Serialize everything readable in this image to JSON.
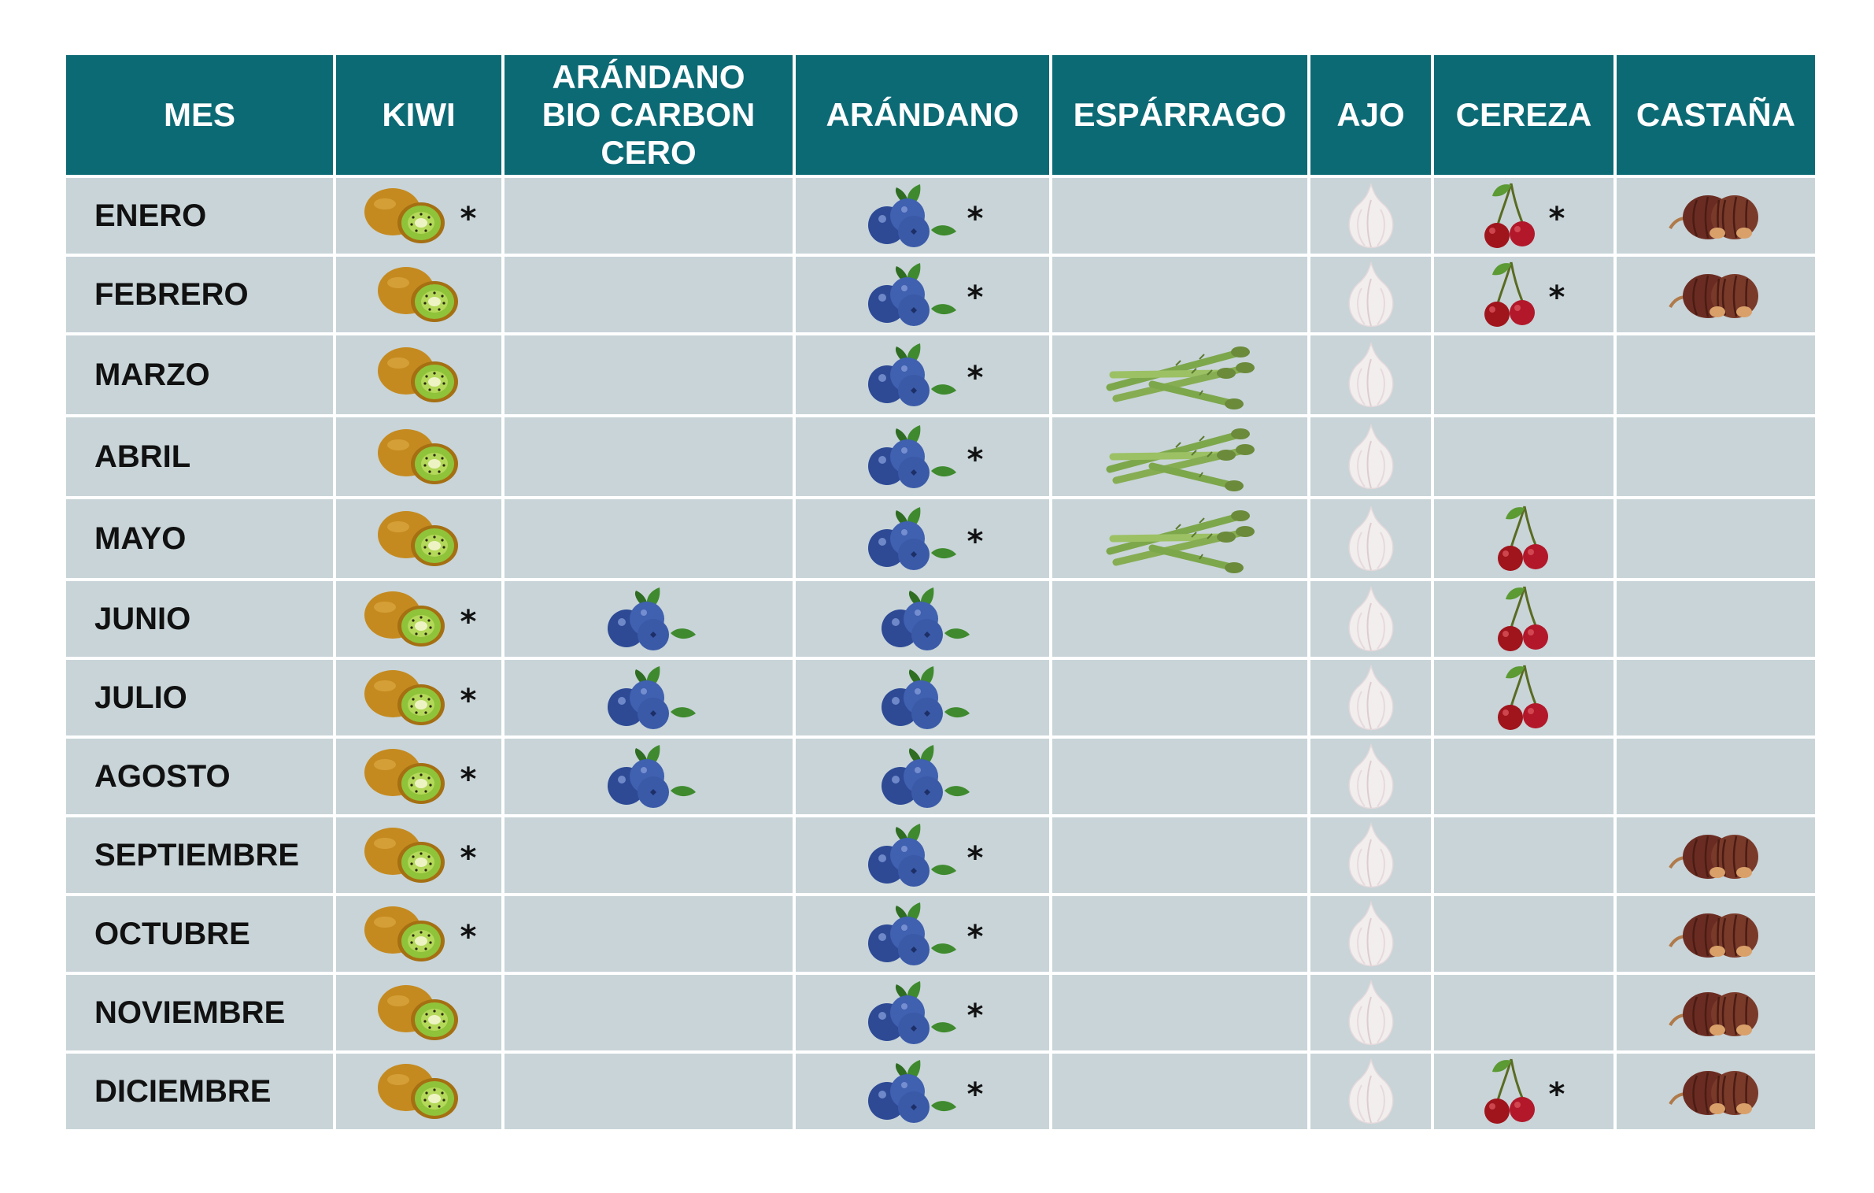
{
  "headers": [
    "MES",
    "KIWI",
    "ARÁNDANO BIO CARBON CERO",
    "ARÁNDANO",
    "ESPÁRRAGO",
    "AJO",
    "CEREZA",
    "CASTAÑA"
  ],
  "products": [
    "kiwi",
    "blueberry",
    "blueberry",
    "asparagus",
    "garlic",
    "cherry",
    "chestnut"
  ],
  "asterisk": "*",
  "rows": [
    {
      "month": "ENERO",
      "cells": [
        "Y*",
        "",
        "Y*",
        "",
        "Y",
        "Y*",
        "Y"
      ]
    },
    {
      "month": "FEBRERO",
      "cells": [
        "Y",
        "",
        "Y*",
        "",
        "Y",
        "Y*",
        "Y"
      ]
    },
    {
      "month": "MARZO",
      "cells": [
        "Y",
        "",
        "Y*",
        "Y",
        "Y",
        "",
        ""
      ]
    },
    {
      "month": "ABRIL",
      "cells": [
        "Y",
        "",
        "Y*",
        "Y",
        "Y",
        "",
        ""
      ]
    },
    {
      "month": "MAYO",
      "cells": [
        "Y",
        "",
        "Y*",
        "Y",
        "Y",
        "Y",
        ""
      ]
    },
    {
      "month": "JUNIO",
      "cells": [
        "Y*",
        "Y",
        "Y",
        "",
        "Y",
        "Y",
        ""
      ]
    },
    {
      "month": "JULIO",
      "cells": [
        "Y*",
        "Y",
        "Y",
        "",
        "Y",
        "Y",
        ""
      ]
    },
    {
      "month": "AGOSTO",
      "cells": [
        "Y*",
        "Y",
        "Y",
        "",
        "Y",
        "",
        ""
      ]
    },
    {
      "month": "SEPTIEMBRE",
      "cells": [
        "Y*",
        "",
        "Y*",
        "",
        "Y",
        "",
        "Y"
      ]
    },
    {
      "month": "OCTUBRE",
      "cells": [
        "Y*",
        "",
        "Y*",
        "",
        "Y",
        "",
        "Y"
      ]
    },
    {
      "month": "NOVIEMBRE",
      "cells": [
        "Y",
        "",
        "Y*",
        "",
        "Y",
        "",
        "Y"
      ]
    },
    {
      "month": "DICIEMBRE",
      "cells": [
        "Y",
        "",
        "Y*",
        "",
        "Y",
        "Y*",
        "Y"
      ]
    }
  ],
  "colors": {
    "header_bg": "#0c6a75",
    "header_text": "#ffffff",
    "cell_bg": "#c8d4d8",
    "kiwi_skin": "#c58a1f",
    "kiwi_flesh": "#8fc33a",
    "blueberry": "#3a5aa8",
    "asparagus": "#8ab35a",
    "garlic": "#f2eeee",
    "cherry": "#a0141c",
    "chestnut": "#7a3a2a"
  }
}
